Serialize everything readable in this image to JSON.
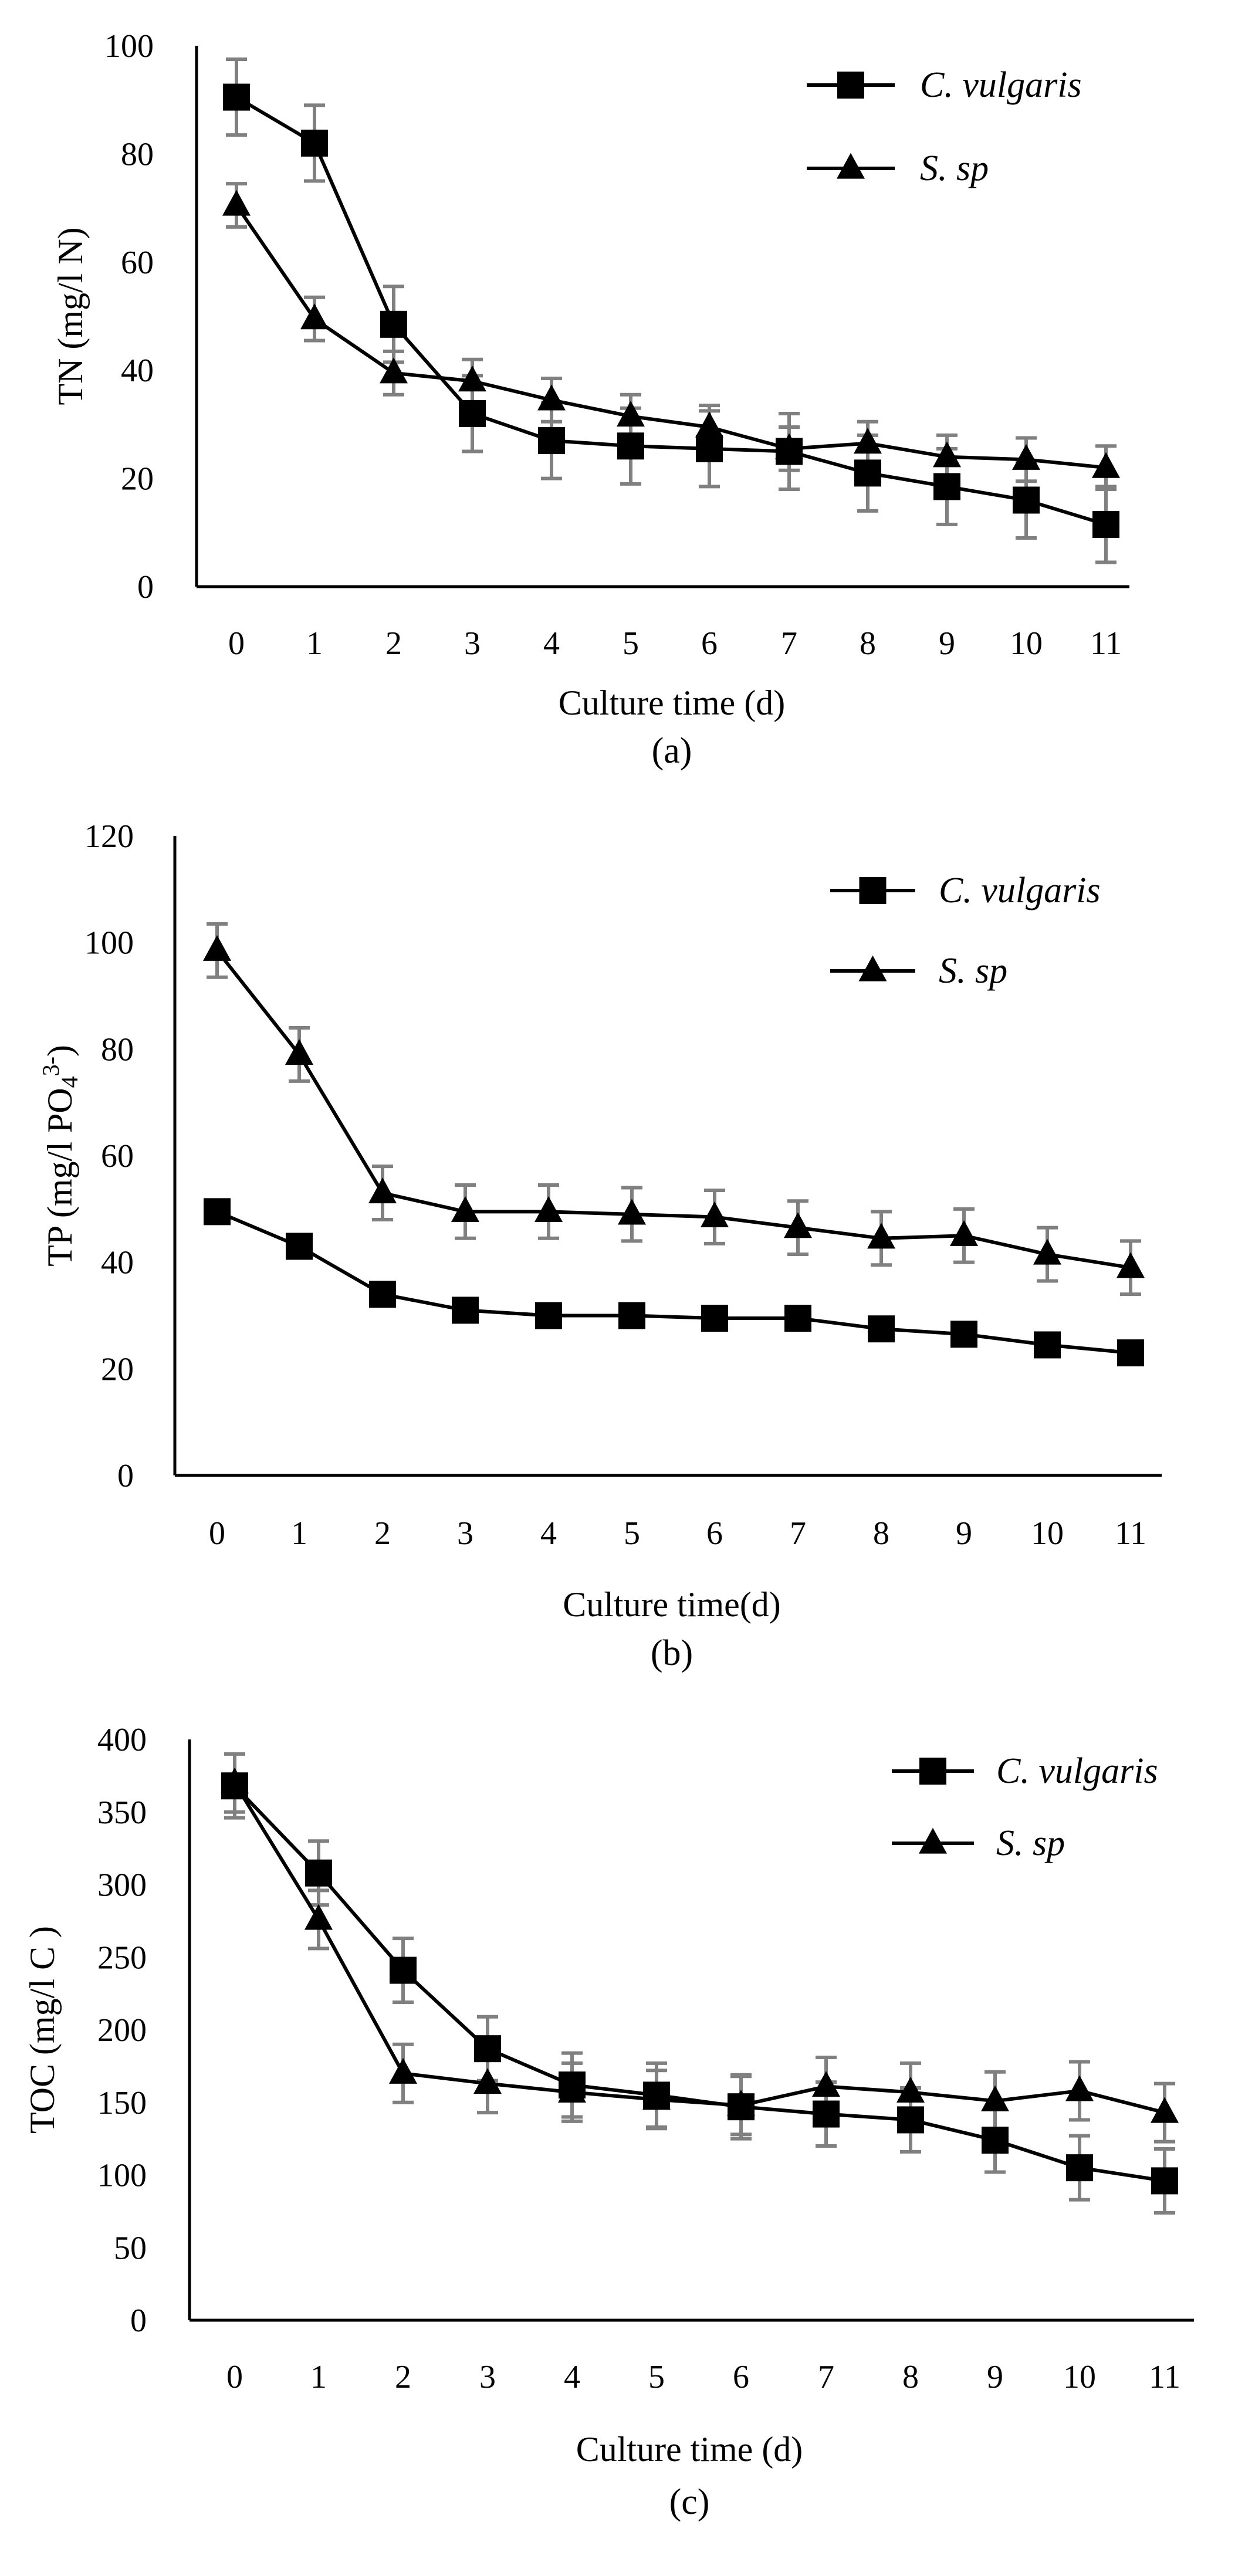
{
  "chart_data": [
    {
      "id": "a",
      "type": "line",
      "panel_label": "(a)",
      "xlabel": "Culture time (d)",
      "ylabel": "TN (mg/l N)",
      "ylabel_parts": [
        {
          "t": "TN (mg/l N)",
          "s": "normal"
        }
      ],
      "ylim": [
        0,
        100
      ],
      "yticks": [
        0,
        20,
        40,
        60,
        80,
        100
      ],
      "categories": [
        "0",
        "1",
        "2",
        "3",
        "4",
        "5",
        "6",
        "7",
        "8",
        "9",
        "10",
        "11"
      ],
      "legend_position": "top-right",
      "series": [
        {
          "name": "C. vulgaris",
          "marker": "square",
          "values": [
            90.5,
            82,
            48.5,
            32,
            27,
            26,
            25.5,
            25,
            21,
            18.5,
            16,
            11.5
          ],
          "errors": [
            7,
            7,
            7,
            7,
            7,
            7,
            7,
            7,
            7,
            7,
            7,
            7
          ]
        },
        {
          "name": "S. sp",
          "marker": "triangle",
          "values": [
            70.5,
            49.5,
            39.5,
            38,
            34.5,
            31.5,
            29.5,
            25.5,
            26.5,
            24,
            23.5,
            22
          ],
          "errors": [
            4,
            4,
            4,
            4,
            4,
            4,
            4,
            4,
            4,
            4,
            4,
            4
          ]
        }
      ]
    },
    {
      "id": "b",
      "type": "line",
      "panel_label": "(b)",
      "xlabel": "Culture time(d)",
      "ylabel": "TP (mg/l PO43-)",
      "ylabel_parts": [
        {
          "t": "TP (mg/l PO",
          "s": "normal"
        },
        {
          "t": "4",
          "s": "sub"
        },
        {
          "t": "3-",
          "s": "sup"
        },
        {
          "t": ")",
          "s": "normal"
        }
      ],
      "ylim": [
        0,
        120
      ],
      "yticks": [
        0,
        20,
        40,
        60,
        80,
        100,
        120
      ],
      "categories": [
        "0",
        "1",
        "2",
        "3",
        "4",
        "5",
        "6",
        "7",
        "8",
        "9",
        "10",
        "11"
      ],
      "legend_position": "top-right",
      "series": [
        {
          "name": "C. vulgaris",
          "marker": "square",
          "values": [
            49.5,
            43,
            34,
            31,
            30,
            30,
            29.5,
            29.5,
            27.5,
            26.5,
            24.5,
            23
          ],
          "errors": [
            0,
            0,
            0,
            0,
            0,
            0,
            0,
            0,
            0,
            0,
            0,
            0
          ]
        },
        {
          "name": "S. sp",
          "marker": "triangle",
          "values": [
            98.5,
            79,
            53,
            49.5,
            49.5,
            49,
            48.5,
            46.5,
            44.5,
            45,
            41.5,
            39
          ],
          "errors": [
            5,
            5,
            5,
            5,
            5,
            5,
            5,
            5,
            5,
            5,
            5,
            5
          ]
        }
      ]
    },
    {
      "id": "c",
      "type": "line",
      "panel_label": "(c)",
      "xlabel": "Culture time (d)",
      "ylabel": "TOC (mg/l C )",
      "ylabel_parts": [
        {
          "t": "TOC (mg/l C )",
          "s": "normal"
        }
      ],
      "ylim": [
        0,
        400
      ],
      "yticks": [
        0,
        50,
        100,
        150,
        200,
        250,
        300,
        350,
        400
      ],
      "categories": [
        "0",
        "1",
        "2",
        "3",
        "4",
        "5",
        "6",
        "7",
        "8",
        "9",
        "10",
        "11"
      ],
      "legend_position": "top-right",
      "series": [
        {
          "name": "C. vulgaris",
          "marker": "square",
          "values": [
            368,
            308,
            241,
            187,
            162,
            155,
            147,
            142,
            138,
            124,
            105,
            96
          ],
          "errors": [
            22,
            22,
            22,
            22,
            22,
            22,
            22,
            22,
            22,
            22,
            22,
            22
          ]
        },
        {
          "name": "S. sp",
          "marker": "triangle",
          "values": [
            370,
            276,
            170,
            163,
            157,
            152,
            148,
            161,
            157,
            151,
            158,
            143
          ],
          "errors": [
            20,
            20,
            20,
            20,
            20,
            20,
            20,
            20,
            20,
            20,
            20,
            20
          ]
        }
      ]
    }
  ]
}
